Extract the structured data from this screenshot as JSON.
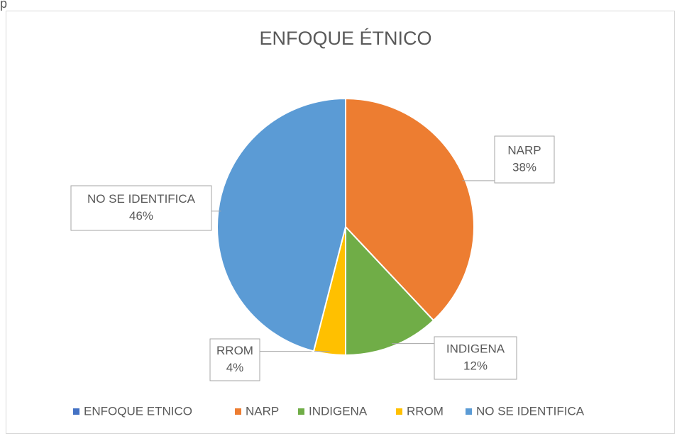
{
  "page_fragment": "p",
  "chart_data": {
    "type": "pie",
    "title": "ENFOQUE ÉTNICO",
    "categories": [
      "ENFOQUE ETNICO",
      "NARP",
      "INDIGENA",
      "RROM",
      "NO SE IDENTIFICA"
    ],
    "values": [
      0,
      38,
      12,
      4,
      46
    ],
    "value_labels": [
      null,
      "38%",
      "12%",
      "4%",
      "46%"
    ],
    "colors": [
      "#4472c4",
      "#ed7d31",
      "#70ad47",
      "#ffc000",
      "#5b9bd5"
    ],
    "legend": "bottom"
  }
}
